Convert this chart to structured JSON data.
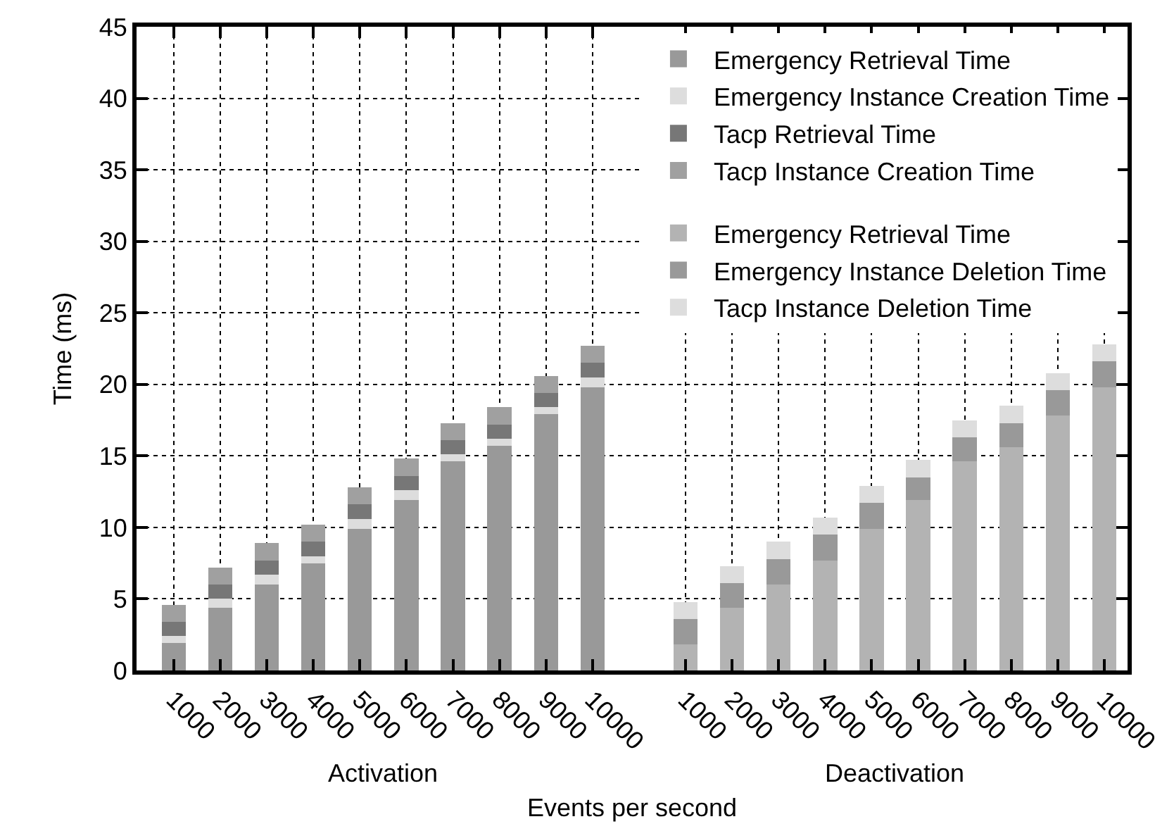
{
  "chart_data": {
    "type": "bar",
    "stacked": true,
    "xlabel": "Events per second",
    "ylabel": "Time (ms)",
    "categories": [
      "1000",
      "2000",
      "3000",
      "4000",
      "5000",
      "6000",
      "7000",
      "8000",
      "9000",
      "10000",
      null,
      "1000",
      "2000",
      "3000",
      "4000",
      "5000",
      "6000",
      "7000",
      "8000",
      "9000",
      "10000"
    ],
    "series": [
      {
        "name": "Emergency Retrieval Time",
        "color": "#999999",
        "values": [
          1.9,
          4.4,
          6.0,
          7.5,
          9.9,
          11.9,
          14.6,
          15.7,
          17.9,
          19.8,
          null,
          null,
          null,
          null,
          null,
          null,
          null,
          null,
          null,
          null,
          null
        ]
      },
      {
        "name": "Emergency Instance Creation Time",
        "color": "#dddddd",
        "values": [
          0.5,
          0.6,
          0.7,
          0.5,
          0.7,
          0.7,
          0.5,
          0.5,
          0.5,
          0.7,
          null,
          null,
          null,
          null,
          null,
          null,
          null,
          null,
          null,
          null,
          null
        ]
      },
      {
        "name": "Tacp Retrieval Time",
        "color": "#777777",
        "values": [
          1.0,
          1.0,
          1.0,
          1.0,
          1.0,
          1.0,
          1.0,
          1.0,
          1.0,
          1.0,
          null,
          null,
          null,
          null,
          null,
          null,
          null,
          null,
          null,
          null,
          null
        ]
      },
      {
        "name": "Tacp Instance Creation Time",
        "color": "#a0a0a0",
        "values": [
          1.2,
          1.2,
          1.2,
          1.2,
          1.2,
          1.2,
          1.2,
          1.2,
          1.2,
          1.2,
          null,
          null,
          null,
          null,
          null,
          null,
          null,
          null,
          null,
          null,
          null
        ]
      },
      {
        "name": "Emergency Retrieval Time",
        "color": "#b3b3b3",
        "values": [
          null,
          null,
          null,
          null,
          null,
          null,
          null,
          null,
          null,
          null,
          null,
          1.8,
          4.4,
          6.0,
          7.7,
          9.9,
          11.9,
          14.6,
          15.6,
          17.8,
          19.8
        ]
      },
      {
        "name": "Emergency Instance Deletion Time",
        "color": "#999999",
        "values": [
          null,
          null,
          null,
          null,
          null,
          null,
          null,
          null,
          null,
          null,
          null,
          1.8,
          1.7,
          1.8,
          1.8,
          1.8,
          1.6,
          1.7,
          1.7,
          1.8,
          1.8
        ]
      },
      {
        "name": "Tacp Instance Deletion Time",
        "color": "#dddddd",
        "values": [
          null,
          null,
          null,
          null,
          null,
          null,
          null,
          null,
          null,
          null,
          null,
          1.2,
          1.2,
          1.2,
          1.2,
          1.2,
          1.2,
          1.2,
          1.2,
          1.2,
          1.2
        ]
      }
    ],
    "ylim": [
      0,
      45
    ],
    "yticks": [
      0,
      5,
      10,
      15,
      20,
      25,
      30,
      35,
      40,
      45
    ],
    "grid": true,
    "legend": "top right",
    "annotations": [
      "Activation",
      "Deactivation"
    ]
  }
}
